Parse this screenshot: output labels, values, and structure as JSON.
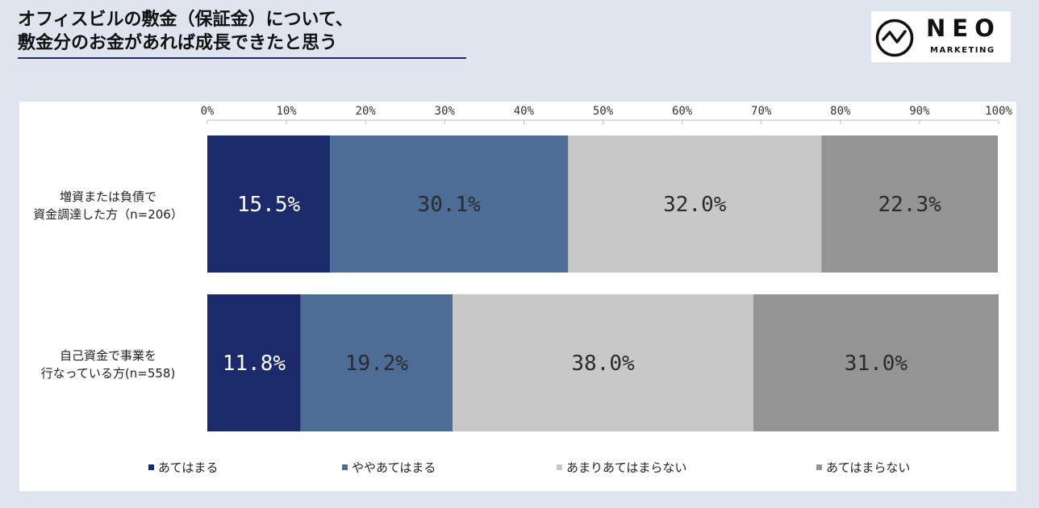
{
  "title": {
    "line1": "オフィスビルの敷金（保証金）について、",
    "line2": "敷金分のお金があれば成長できたと思う"
  },
  "logo": {
    "name": "NEO",
    "sub": "MARKETING"
  },
  "colors": {
    "background": "#dfe4ee",
    "title_rule": "#1f2d6b",
    "series": [
      "#1b2a6b",
      "#4c6d96",
      "#c8c8c8",
      "#949494"
    ],
    "label_text_dark_bg": "#ffffff",
    "label_text_light_bg": "#2b2b2b"
  },
  "chart_data": {
    "type": "bar",
    "orientation": "horizontal",
    "stacked": true,
    "categories": [
      [
        "増資または負債で",
        "資金調達した方（n=206）"
      ],
      [
        "自己資金で事業を",
        "行なっている方(n=558)"
      ]
    ],
    "series": [
      {
        "name": "あてはまる",
        "values": [
          15.5,
          11.8
        ]
      },
      {
        "name": "ややあてはまる",
        "values": [
          30.1,
          19.2
        ]
      },
      {
        "name": "あまりあてはまらない",
        "values": [
          32.0,
          38.0
        ]
      },
      {
        "name": "あてはまらない",
        "values": [
          22.3,
          31.0
        ]
      }
    ],
    "data_labels": [
      [
        "15.5%",
        "30.1%",
        "32.0%",
        "22.3%"
      ],
      [
        "11.8%",
        "19.2%",
        "38.0%",
        "31.0%"
      ]
    ],
    "xlim": [
      0,
      100
    ],
    "x_ticks": [
      "0%",
      "10%",
      "20%",
      "30%",
      "40%",
      "50%",
      "60%",
      "70%",
      "80%",
      "90%",
      "100%"
    ],
    "axis_position": "top",
    "grid": false,
    "legend_position": "bottom"
  }
}
